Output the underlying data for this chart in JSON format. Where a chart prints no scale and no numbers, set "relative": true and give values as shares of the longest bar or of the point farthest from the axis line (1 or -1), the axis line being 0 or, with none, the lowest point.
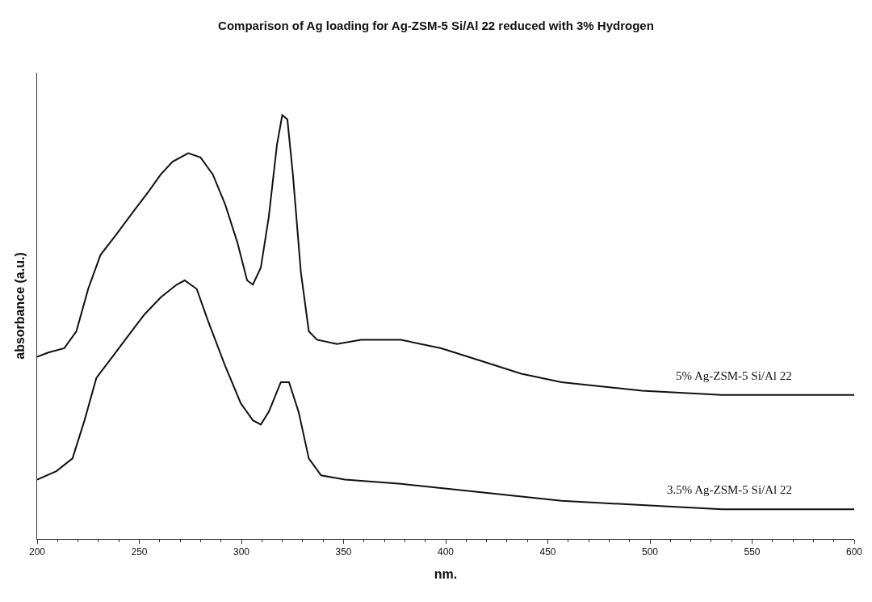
{
  "chart_data": {
    "type": "line",
    "title": "Comparison of Ag loading for Ag-ZSM-5 Si/Al 22 reduced with 3% Hydrogen",
    "xlabel": "nm.",
    "ylabel": "absorbance (a.u.)",
    "relative": true,
    "xlim": [
      200,
      600
    ],
    "xticks": [
      200,
      250,
      300,
      350,
      400,
      450,
      500,
      550,
      600
    ],
    "legend": false,
    "series": [
      {
        "name": "5% Ag-ZSM-5 Si/Al 22",
        "color": "#111111",
        "x": [
          200,
          205.5,
          213.3,
          219.2,
          225,
          231,
          239,
          246.7,
          254.6,
          260.5,
          266.3,
          274,
          280,
          286,
          292,
          298,
          302.8,
          305.6,
          309.5,
          313.4,
          317.4,
          320,
          322.5,
          325.2,
          329.1,
          333,
          337,
          346.8,
          358.6,
          378,
          397.8,
          417.5,
          437,
          456.7,
          496,
          535,
          574.5,
          600
        ],
        "values": [
          0.43,
          0.44,
          0.45,
          0.49,
          0.59,
          0.67,
          0.72,
          0.77,
          0.82,
          0.86,
          0.89,
          0.91,
          0.9,
          0.86,
          0.79,
          0.7,
          0.61,
          0.6,
          0.64,
          0.76,
          0.93,
          1.0,
          0.99,
          0.86,
          0.63,
          0.49,
          0.47,
          0.46,
          0.47,
          0.47,
          0.45,
          0.42,
          0.39,
          0.37,
          0.35,
          0.34,
          0.34,
          0.34
        ]
      },
      {
        "name": "3.5% Ag-ZSM-5 Si/Al 22",
        "color": "#111111",
        "x": [
          200,
          209.4,
          217.3,
          223.2,
          229,
          236.9,
          244.7,
          252.6,
          260.5,
          268.3,
          272.2,
          278.1,
          284,
          291.9,
          299.7,
          305.6,
          309.5,
          313.4,
          319.3,
          323.3,
          328,
          333,
          339,
          350.7,
          378.2,
          417.5,
          456.7,
          496,
          535.2,
          600
        ],
        "values": [
          0.14,
          0.16,
          0.19,
          0.28,
          0.38,
          0.43,
          0.48,
          0.53,
          0.57,
          0.6,
          0.61,
          0.59,
          0.51,
          0.41,
          0.32,
          0.28,
          0.27,
          0.3,
          0.37,
          0.37,
          0.3,
          0.19,
          0.15,
          0.14,
          0.13,
          0.11,
          0.09,
          0.08,
          0.07,
          0.07
        ]
      }
    ]
  }
}
